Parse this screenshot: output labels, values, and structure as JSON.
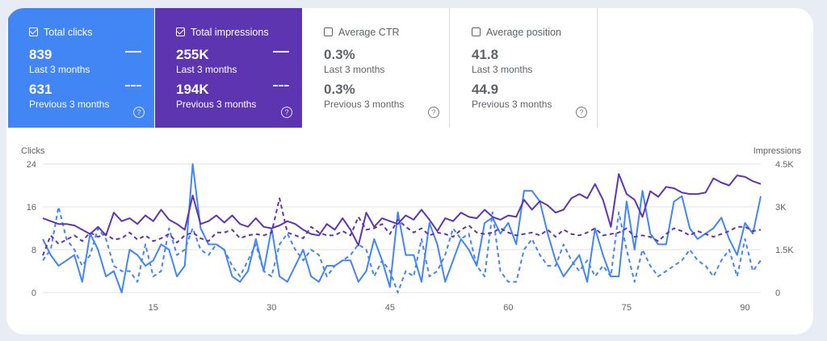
{
  "cards": [
    {
      "title": "Total clicks",
      "checked": true,
      "value1": "839",
      "label1": "Last 3 months",
      "value2": "631",
      "label2": "Previous 3 months"
    },
    {
      "title": "Total impressions",
      "checked": true,
      "value1": "255K",
      "label1": "Last 3 months",
      "value2": "194K",
      "label2": "Previous 3 months"
    },
    {
      "title": "Average CTR",
      "checked": false,
      "value1": "0.3%",
      "label1": "Last 3 months",
      "value2": "0.3%",
      "label2": "Previous 3 months"
    },
    {
      "title": "Average position",
      "checked": false,
      "value1": "41.8",
      "label1": "Last 3 months",
      "value2": "44.9",
      "label2": "Previous 3 months"
    }
  ],
  "help_glyph": "?",
  "colors": {
    "clicks": "#4285f4",
    "impressions": "#5e35b1",
    "grid": "#e0e0e0"
  },
  "chart_data": {
    "type": "line",
    "ylabel_left": "Clicks",
    "ylabel_right": "Impressions",
    "left_ticks": [
      "0",
      "8",
      "16",
      "24"
    ],
    "right_ticks": [
      "0",
      "1.5K",
      "3K",
      "4.5K"
    ],
    "x_ticks": [
      "15",
      "30",
      "45",
      "60",
      "75",
      "90"
    ],
    "x_tick_values": [
      15,
      30,
      45,
      60,
      75,
      90
    ],
    "ylim_left": [
      0,
      24
    ],
    "ylim_right": [
      0,
      4500
    ],
    "xlim": [
      1,
      92
    ],
    "series": [
      {
        "axis": "left",
        "style": "solid",
        "color": "#4285f4",
        "values": [
          10,
          7,
          5,
          6,
          7,
          2,
          11,
          8,
          3,
          4,
          0,
          8,
          7,
          5,
          6,
          9,
          8,
          3,
          5,
          24,
          12,
          9,
          9,
          8,
          3,
          2,
          4,
          10,
          4,
          12,
          3,
          2,
          5,
          8,
          3,
          2,
          5,
          5,
          6,
          6,
          2,
          4,
          10,
          6,
          1,
          15,
          7,
          7,
          2,
          13,
          9,
          2,
          6,
          10,
          8,
          5,
          13,
          14,
          11,
          13,
          9,
          19,
          19,
          17,
          11,
          6,
          3,
          5,
          7,
          2,
          12,
          7,
          3,
          3,
          17,
          8,
          19,
          11,
          9,
          9,
          17,
          18,
          12,
          10,
          11,
          12,
          14,
          10,
          7,
          13,
          11,
          18
        ]
      },
      {
        "axis": "left",
        "style": "dashed",
        "color": "#4285f4",
        "values": [
          6,
          8,
          16,
          10,
          8,
          5,
          7,
          12,
          10,
          5,
          4,
          4,
          2,
          9,
          3,
          4,
          12,
          7,
          8,
          12,
          8,
          7,
          9,
          8,
          5,
          3,
          6,
          9,
          4,
          3,
          9,
          11,
          8,
          6,
          8,
          7,
          3,
          5,
          6,
          7,
          9,
          8,
          3,
          6,
          4,
          0,
          4,
          3,
          10,
          3,
          4,
          7,
          12,
          10,
          11,
          5,
          3,
          15,
          4,
          2,
          2,
          8,
          10,
          7,
          5,
          5,
          9,
          6,
          4,
          6,
          3,
          5,
          3,
          15,
          8,
          2,
          8,
          5,
          3,
          4,
          5,
          6,
          8,
          6,
          5,
          3,
          6,
          8,
          3,
          10,
          4,
          6
        ]
      },
      {
        "axis": "right",
        "style": "solid",
        "color": "#5e35b1",
        "values": [
          2600,
          2500,
          2400,
          2400,
          2350,
          2200,
          2050,
          2300,
          2000,
          2800,
          2500,
          2600,
          2400,
          2700,
          2500,
          2900,
          2550,
          2400,
          2200,
          3400,
          2400,
          2500,
          2700,
          2450,
          2700,
          2400,
          2300,
          2600,
          2300,
          2250,
          2350,
          2500,
          2400,
          2200,
          2050,
          2000,
          2400,
          2200,
          2600,
          2200,
          1650,
          2800,
          2300,
          2600,
          2500,
          2400,
          2700,
          2550,
          2900,
          2550,
          2150,
          2600,
          2500,
          2800,
          2650,
          2600,
          2900,
          2650,
          2550,
          2700,
          2650,
          3250,
          2900,
          3200,
          3050,
          2800,
          2900,
          3300,
          3450,
          3300,
          3800,
          3250,
          2300,
          4150,
          3450,
          3250,
          2650,
          3550,
          3350,
          3700,
          3650,
          3500,
          3450,
          3450,
          3500,
          4000,
          3850,
          3750,
          4100,
          4050,
          3900,
          3800
        ]
      },
      {
        "axis": "right",
        "style": "dashed",
        "color": "#5e35b1",
        "values": [
          1300,
          2000,
          1700,
          1850,
          2000,
          1800,
          2100,
          1950,
          2050,
          1850,
          1900,
          2100,
          1850,
          2000,
          1800,
          1900,
          2050,
          1750,
          2000,
          2100,
          1900,
          1800,
          2100,
          2100,
          2200,
          1900,
          2000,
          2050,
          2000,
          2100,
          3300,
          2100,
          2000,
          1900,
          2300,
          2100,
          2000,
          2000,
          2150,
          2000,
          2650,
          2200,
          2250,
          2400,
          2050,
          2550,
          2300,
          2100,
          2250,
          2000,
          2100,
          2050,
          1950,
          2200,
          2350,
          2100,
          2050,
          2100,
          2250,
          2100,
          2000,
          2050,
          2100,
          2000,
          2200,
          1950,
          2200,
          2050,
          2000,
          2100,
          2250,
          2000,
          2050,
          2100,
          2250,
          1950,
          2000,
          1950,
          1800,
          2050,
          2250,
          2150,
          2000,
          2150,
          2050,
          1950,
          2050,
          2150,
          2300,
          2300,
          2150,
          2200
        ]
      }
    ]
  }
}
